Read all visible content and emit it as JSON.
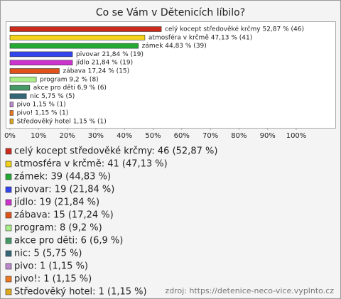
{
  "chart_data": {
    "type": "bar",
    "orientation": "horizontal",
    "title": "Co se Vám v Dětenicích líbilo?",
    "categories": [
      "celý kocept středověké krčmy",
      "atmosféra v krčmě",
      "zámek",
      "pivovar",
      "jídlo",
      "zábava",
      "program",
      "akce pro děti",
      "nic",
      "pivo",
      "pivo!",
      "Středověký hotel"
    ],
    "values": [
      52.87,
      47.13,
      44.83,
      21.84,
      21.84,
      17.24,
      9.2,
      6.9,
      5.75,
      1.15,
      1.15,
      1.15
    ],
    "value_labels": [
      "celý kocept středověké krčmy 52,87 % (46)",
      "atmosféra v krčmě 47,13 % (41)",
      "zámek 44,83 % (39)",
      "pivovar 21,84 % (19)",
      "jídlo 21,84 % (19)",
      "zábava 17,24 % (15)",
      "program 9,2 % (8)",
      "akce pro děti 6,9 % (6)",
      "nic 5,75 % (5)",
      "pivo 1,15 % (1)",
      "pivo! 1,15 % (1)",
      "Středověký hotel 1,15 % (1)"
    ],
    "legend_labels": [
      "celý kocept středověké krčmy: 46 (52,87 %)",
      "atmosféra v krčmě: 41 (47,13 %)",
      "zámek: 39 (44,83 %)",
      "pivovar: 19 (21,84 %)",
      "jídlo: 19 (21,84 %)",
      "zábava: 15 (17,24 %)",
      "program: 8 (9,2 %)",
      "akce pro děti: 6 (6,9 %)",
      "nic: 5 (5,75 %)",
      "pivo: 1 (1,15 %)",
      "pivo!: 1 (1,15 %)",
      "Středověký hotel: 1 (1,15 %)"
    ],
    "colors": [
      "#cc2a1a",
      "#f2d21a",
      "#22aa33",
      "#3344ee",
      "#cc33cc",
      "#e0521a",
      "#aaee88",
      "#449966",
      "#336677",
      "#bb88cc",
      "#ee7722",
      "#ddaa22"
    ],
    "xlim": [
      0,
      100
    ],
    "xticks": [
      {
        "value": 0,
        "label": "0%"
      },
      {
        "value": 10,
        "label": "10%"
      },
      {
        "value": 20,
        "label": "20%"
      },
      {
        "value": 30,
        "label": "30%"
      },
      {
        "value": 40,
        "label": "40%"
      },
      {
        "value": 50,
        "label": "50%"
      },
      {
        "value": 60,
        "label": "60%"
      },
      {
        "value": 70,
        "label": "70%"
      },
      {
        "value": 80,
        "label": "80%"
      },
      {
        "value": 90,
        "label": "90%"
      },
      {
        "value": 100,
        "label": "100%"
      }
    ],
    "source": "zdroj: https://detenice-neco-vice.vyplnto.cz"
  }
}
